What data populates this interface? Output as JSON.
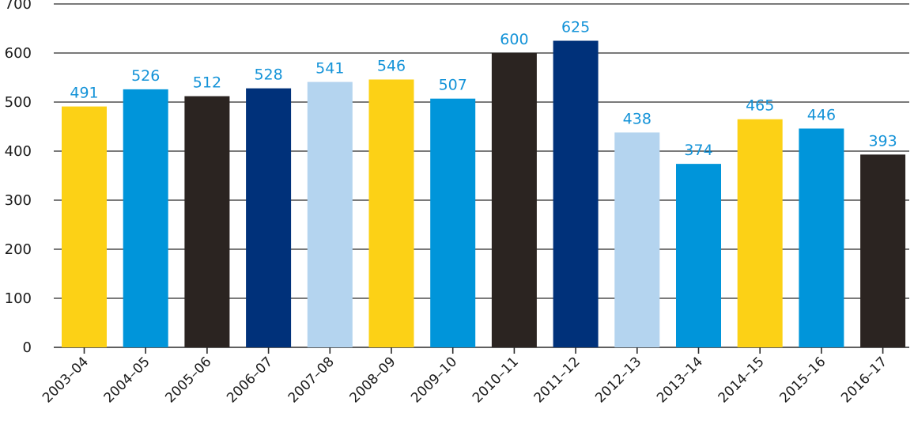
{
  "chart_data": {
    "type": "bar",
    "title": "",
    "xlabel": "",
    "ylabel": "",
    "ylim": [
      0,
      700
    ],
    "yticks": [
      0,
      100,
      200,
      300,
      400,
      500,
      600,
      700
    ],
    "grid": true,
    "categories": [
      "2003–04",
      "2004–05",
      "2005–06",
      "2006–07",
      "2007–08",
      "2008–09",
      "2009–10",
      "2010–11",
      "2011–12",
      "2012–13",
      "2013–14",
      "2014–15",
      "2015–16",
      "2016–17"
    ],
    "values": [
      491,
      526,
      512,
      528,
      541,
      546,
      507,
      600,
      625,
      438,
      374,
      465,
      446,
      393
    ],
    "bar_colors": [
      "#fcd116",
      "#0095da",
      "#2b2421",
      "#00317a",
      "#b4d4ef",
      "#fcd116",
      "#0095da",
      "#2b2421",
      "#00317a",
      "#b4d4ef",
      "#0095da",
      "#fcd116",
      "#0095da",
      "#2b2421"
    ],
    "data_label_color": "#1493d8"
  }
}
